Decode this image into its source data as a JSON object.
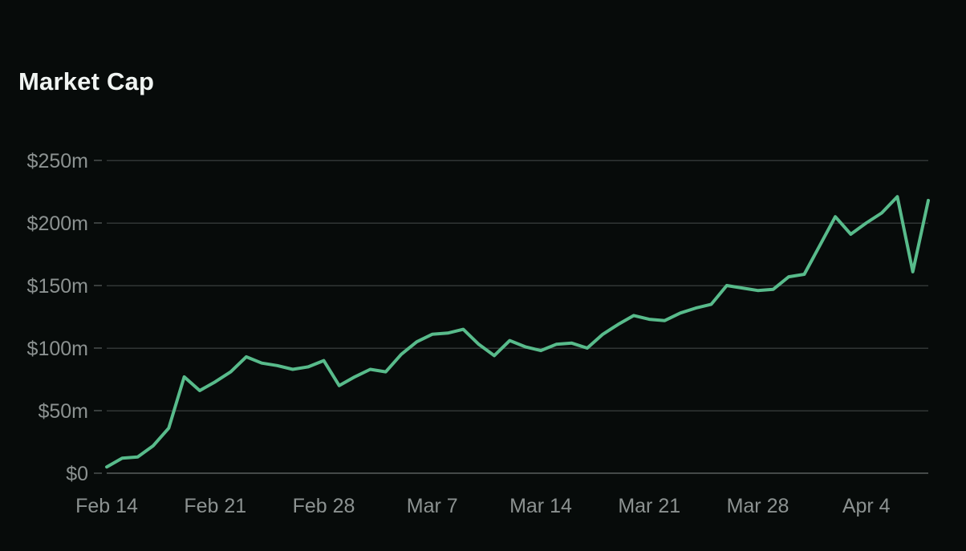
{
  "header": {
    "title": "Market Cap"
  },
  "colors": {
    "background": "#070b0a",
    "title_text": "#f0f4f2",
    "axis_label_text": "#8c9291",
    "gridline": "#313635",
    "zero_line": "#454a49",
    "tick_mark": "#3a3f3e",
    "line": "#58bb8b"
  },
  "chart_data": {
    "type": "line",
    "title": "Market Cap",
    "xlabel": "",
    "ylabel": "",
    "ylim": [
      0,
      250
    ],
    "grid": "horizontal",
    "legend": "none",
    "line_color": "#58bb8b",
    "y_unit": "$ million",
    "y_ticks": [
      {
        "label": "$250m",
        "value": 250
      },
      {
        "label": "$200m",
        "value": 200
      },
      {
        "label": "$150m",
        "value": 150
      },
      {
        "label": "$100m",
        "value": 100
      },
      {
        "label": "$50m",
        "value": 50
      },
      {
        "label": "$0",
        "value": 0
      }
    ],
    "x_ticks": [
      {
        "label": "Feb 14",
        "index": 0
      },
      {
        "label": "Feb 21",
        "index": 7
      },
      {
        "label": "Feb 28",
        "index": 14
      },
      {
        "label": "Mar 7",
        "index": 21
      },
      {
        "label": "Mar 14",
        "index": 28
      },
      {
        "label": "Mar 21",
        "index": 35
      },
      {
        "label": "Mar 28",
        "index": 42
      },
      {
        "label": "Apr 4",
        "index": 49
      }
    ],
    "dates": [
      "Feb 14",
      "Feb 15",
      "Feb 16",
      "Feb 17",
      "Feb 18",
      "Feb 19",
      "Feb 20",
      "Feb 21",
      "Feb 22",
      "Feb 23",
      "Feb 24",
      "Feb 25",
      "Feb 26",
      "Feb 27",
      "Feb 28",
      "Mar 1",
      "Mar 2",
      "Mar 3",
      "Mar 4",
      "Mar 5",
      "Mar 6",
      "Mar 7",
      "Mar 8",
      "Mar 9",
      "Mar 10",
      "Mar 11",
      "Mar 12",
      "Mar 13",
      "Mar 14",
      "Mar 15",
      "Mar 16",
      "Mar 17",
      "Mar 18",
      "Mar 19",
      "Mar 20",
      "Mar 21",
      "Mar 22",
      "Mar 23",
      "Mar 24",
      "Mar 25",
      "Mar 26",
      "Mar 27",
      "Mar 28",
      "Mar 29",
      "Mar 30",
      "Mar 31",
      "Apr 1",
      "Apr 2",
      "Apr 3",
      "Apr 4",
      "Apr 5",
      "Apr 6",
      "Apr 7",
      "Apr 8"
    ],
    "values_millions_usd": [
      5,
      12,
      13,
      22,
      36,
      77,
      66,
      73,
      81,
      93,
      88,
      86,
      83,
      85,
      90,
      70,
      77,
      83,
      81,
      95,
      105,
      111,
      112,
      115,
      103,
      94,
      106,
      101,
      98,
      103,
      104,
      100,
      111,
      119,
      126,
      123,
      122,
      128,
      132,
      135,
      150,
      148,
      146,
      147,
      157,
      159,
      182,
      205,
      191,
      200,
      208,
      221,
      161,
      218
    ]
  }
}
